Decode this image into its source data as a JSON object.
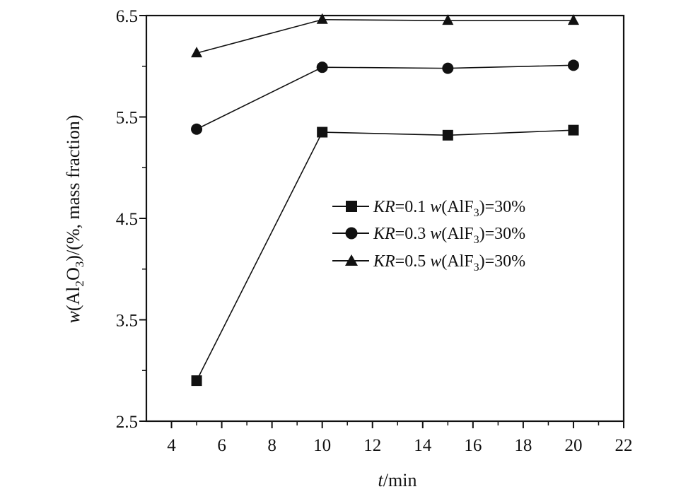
{
  "chart_data": {
    "type": "line",
    "xlabel": "t/min",
    "ylabel": "w(Al2O3)/(%, mass fraction)",
    "xlim": [
      3,
      22
    ],
    "ylim": [
      2.5,
      6.5
    ],
    "xticks": [
      4,
      6,
      8,
      10,
      12,
      14,
      16,
      18,
      20,
      22
    ],
    "yticks": [
      2.5,
      3.5,
      4.5,
      5.5,
      6.5
    ],
    "x": [
      5,
      10,
      15,
      20
    ],
    "series": [
      {
        "name": "KR=0.1 w(AlF3)=30%",
        "label_parts": {
          "kr": "KR",
          "kr_val": "=0.1 ",
          "w": "w",
          "wt": "(AlF",
          "sub": "3",
          "rest": ")=30%"
        },
        "marker": "square",
        "values": [
          2.9,
          5.35,
          5.32,
          5.37
        ]
      },
      {
        "name": "KR=0.3 w(AlF3)=30%",
        "label_parts": {
          "kr": "KR",
          "kr_val": "=0.3 ",
          "w": "w",
          "wt": "(AlF",
          "sub": "3",
          "rest": ")=30%"
        },
        "marker": "circle",
        "values": [
          5.38,
          5.99,
          5.98,
          6.01
        ]
      },
      {
        "name": "KR=0.5 w(AlF3)=30%",
        "label_parts": {
          "kr": "KR",
          "kr_val": "=0.5 ",
          "w": "w",
          "wt": "(AlF",
          "sub": "3",
          "rest": ")=30%"
        },
        "marker": "triangle",
        "values": [
          6.13,
          6.46,
          6.45,
          6.45
        ]
      }
    ],
    "legend_position": "center-right",
    "grid": false
  },
  "labels": {
    "x": {
      "italic": "t",
      "rest": "/min"
    },
    "y": {
      "w": "w",
      "open": "(Al",
      "sub1": "2",
      "o": "O",
      "sub2": "3",
      "rest": ")/(%, mass fraction)"
    }
  },
  "colors": {
    "ink": "#111111",
    "background": "#ffffff"
  }
}
